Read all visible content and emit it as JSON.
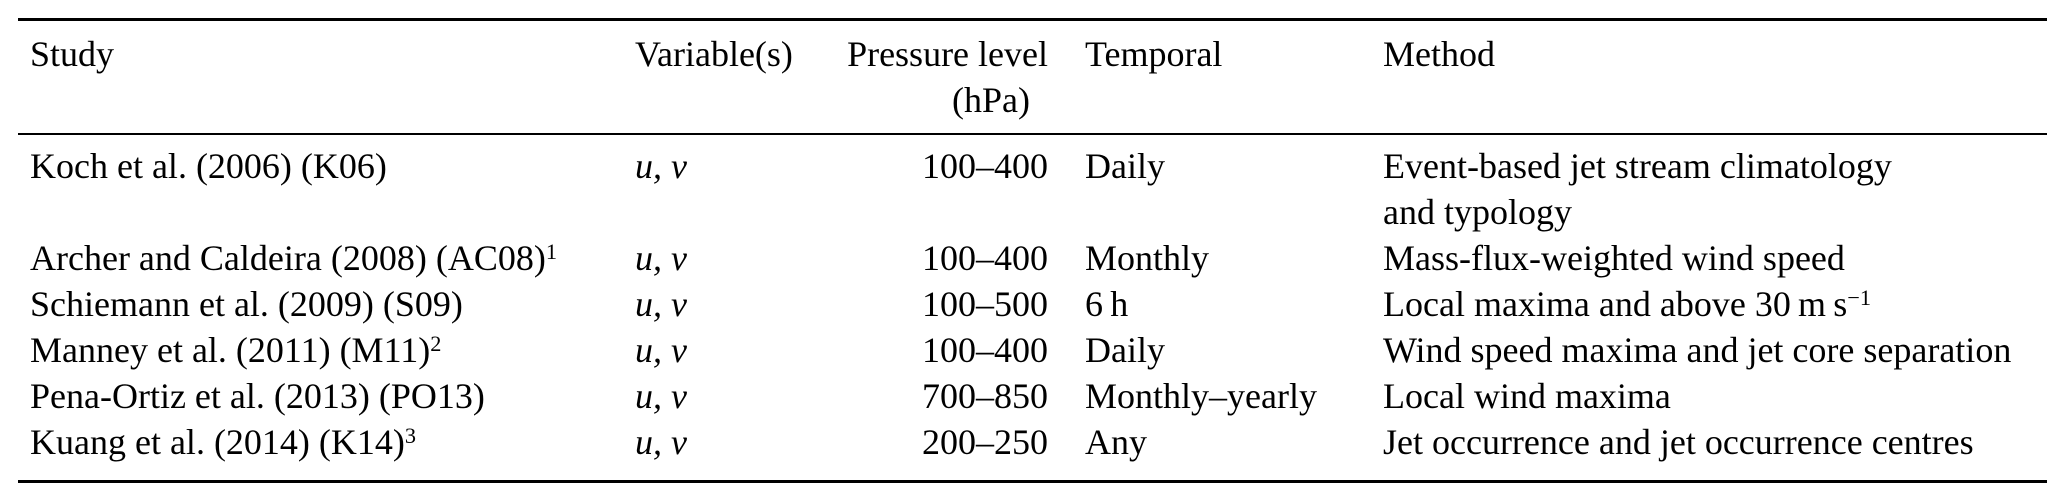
{
  "table": {
    "background": "#ffffff",
    "text_color": "#000000",
    "columns": {
      "study": "Study",
      "variables": "Variable(s)",
      "pressure_line1": "Pressure level",
      "pressure_line2": "(hPa)",
      "temporal": "Temporal",
      "method": "Method"
    },
    "rows": [
      {
        "study": "Koch et al. (2006) (K06)",
        "study_sup": "",
        "variables": "u, v",
        "pressure": "100–400",
        "temporal": "Daily",
        "method": "Event-based jet stream climatology",
        "method_sup": "",
        "method_line2": "and typology"
      },
      {
        "study": "Archer and Caldeira (2008) (AC08)",
        "study_sup": "1",
        "variables": "u, v",
        "pressure": "100–400",
        "temporal": "Monthly",
        "method": "Mass-flux-weighted wind speed",
        "method_sup": "",
        "method_line2": ""
      },
      {
        "study": "Schiemann et al. (2009) (S09)",
        "study_sup": "",
        "variables": "u, v",
        "pressure": "100–500",
        "temporal": "6 h",
        "method": "Local maxima and above 30 m s",
        "method_sup": "−1",
        "method_line2": ""
      },
      {
        "study": "Manney et al. (2011) (M11)",
        "study_sup": "2",
        "variables": "u, v",
        "pressure": "100–400",
        "temporal": "Daily",
        "method": "Wind speed maxima and jet core separation",
        "method_sup": "",
        "method_line2": ""
      },
      {
        "study": "Pena-Ortiz et al. (2013) (PO13)",
        "study_sup": "",
        "variables": "u, v",
        "pressure": "700–850",
        "temporal": "Monthly–yearly",
        "method": "Local wind maxima",
        "method_sup": "",
        "method_line2": ""
      },
      {
        "study": "Kuang et al. (2014) (K14)",
        "study_sup": "3",
        "variables": "u, v",
        "pressure": "200–250",
        "temporal": "Any",
        "method": "Jet occurrence and jet occurrence centres",
        "method_sup": "",
        "method_line2": ""
      }
    ]
  }
}
